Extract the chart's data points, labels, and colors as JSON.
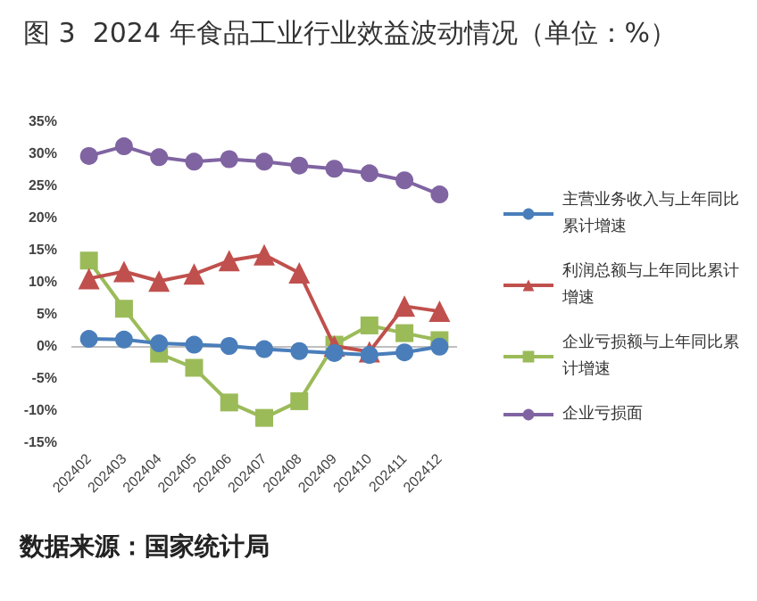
{
  "chart_data": {
    "type": "line",
    "title": "图 3  2024 年食品工业行业效益波动情况（单位：%）",
    "categories": [
      "202402",
      "202403",
      "202404",
      "202405",
      "202406",
      "202407",
      "202408",
      "202409",
      "202410",
      "202411",
      "202412"
    ],
    "series": [
      {
        "name": "主营业务收入与上年同比累计增速",
        "color": "#4a7ebb",
        "marker": "circle",
        "values": [
          1.1,
          1.0,
          0.4,
          0.2,
          0,
          -0.5,
          -0.8,
          -1.1,
          -1.4,
          -1.0,
          -0.1
        ]
      },
      {
        "name": "利润总额与上年同比累计增速",
        "color": "#c0504d",
        "marker": "triangle",
        "values": [
          10.5,
          11.6,
          10.1,
          11.2,
          13.3,
          14.2,
          11.4,
          0,
          -0.9,
          6.2,
          5.4
        ]
      },
      {
        "name": "企业亏损额与上年同比累计增速",
        "color": "#9bbb59",
        "marker": "square",
        "values": [
          13.3,
          5.8,
          -1.2,
          -3.4,
          -8.8,
          -11.2,
          -8.6,
          0.2,
          3.2,
          2.0,
          0.9
        ]
      },
      {
        "name": "企业亏损面",
        "color": "#8064a2",
        "marker": "circle",
        "values": [
          29.6,
          31.1,
          29.4,
          28.7,
          29.1,
          28.7,
          28.1,
          27.6,
          26.9,
          25.8,
          23.6
        ]
      }
    ],
    "ylim": [
      -15,
      35
    ],
    "yticks": [
      {
        "value": -15,
        "label": "-15%"
      },
      {
        "value": -10,
        "label": "-10%"
      },
      {
        "value": -5,
        "label": "-5%"
      },
      {
        "value": 0,
        "label": "0%"
      },
      {
        "value": 5,
        "label": "5%"
      },
      {
        "value": 10,
        "label": "10%"
      },
      {
        "value": 15,
        "label": "15%"
      },
      {
        "value": 20,
        "label": "20%"
      },
      {
        "value": 25,
        "label": "25%"
      },
      {
        "value": 30,
        "label": "30%"
      },
      {
        "value": 35,
        "label": "35%"
      }
    ],
    "grid": false,
    "legend": "right",
    "ref_lines": [
      {
        "axis": "y",
        "value": 0,
        "color": "#bfbfbf"
      }
    ],
    "annotations": [
      "数据来源：国家统计局"
    ]
  }
}
